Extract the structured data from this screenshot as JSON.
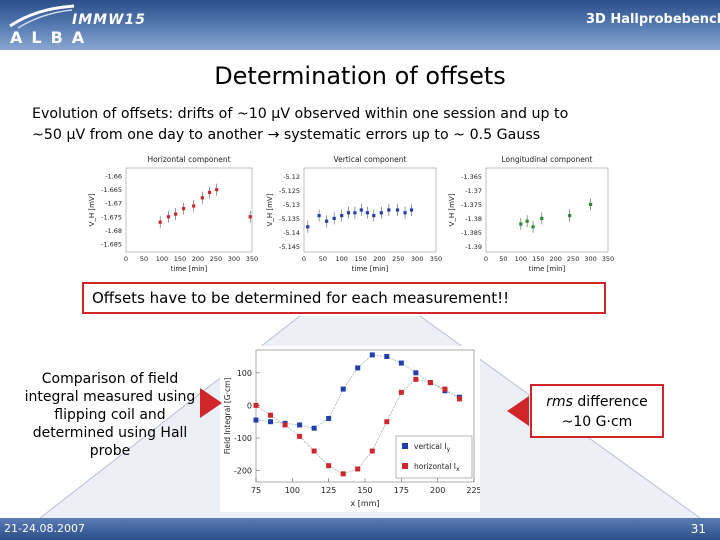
{
  "header": {
    "conference": "IMMW15",
    "logo_text": "ALBA",
    "topic": "3D Hallprobebench"
  },
  "title": "Determination of offsets",
  "intro": {
    "line1": "Evolution of offsets: drifts of ~10 μV observed within one session and up to",
    "line2": "~50 μV from one day to another → systematic errors up to ~ 0.5 Gauss"
  },
  "callouts": {
    "offsets_box": "Offsets have to be determined for each measurement!!",
    "left_text": "Comparison of field integral measured using flipping coil and determined using Hall probe",
    "rms_line1_em": "rms",
    "rms_line1_rest": " difference",
    "rms_line2": "~10 G·cm"
  },
  "footer": {
    "date": "21-24.08.2007",
    "page": "31"
  },
  "colors": {
    "header_blue": "#3a5f9c",
    "box_border": "#d0262a",
    "red_points": "#d0262a",
    "blue_points": "#1f3fb0",
    "green_points": "#2e8b2e"
  },
  "chart_data": [
    {
      "type": "scatter",
      "title": "Horizontal component",
      "xlabel": "time [min]",
      "ylabel": "V_H [mV]",
      "xticks": [
        "0",
        "50",
        "100",
        "150",
        "200",
        "250",
        "300",
        "350"
      ],
      "yticks": [
        "-1.66",
        "-1.665",
        "-1.67",
        "-1.675",
        "-1.68",
        "-1.685"
      ],
      "xlim": [
        0,
        350
      ],
      "ylim": [
        -1.688,
        -1.657
      ],
      "series": [
        {
          "name": "",
          "color": "#d0262a",
          "x": [
            95,
            118,
            138,
            160,
            188,
            212,
            232,
            252,
            345
          ],
          "y": [
            -1.677,
            -1.675,
            -1.674,
            -1.672,
            -1.671,
            -1.668,
            -1.666,
            -1.665,
            -1.675
          ]
        }
      ]
    },
    {
      "type": "scatter",
      "title": "Vertical component",
      "xlabel": "time [min]",
      "ylabel": "V_H [mV]",
      "xticks": [
        "0",
        "50",
        "100",
        "150",
        "200",
        "250",
        "300",
        "350"
      ],
      "yticks": [
        "-5.12",
        "-5.125",
        "-5.13",
        "-5.135",
        "-5.14",
        "-5.145"
      ],
      "xlim": [
        0,
        350
      ],
      "ylim": [
        -5.147,
        -5.117
      ],
      "series": [
        {
          "name": "",
          "color": "#1f3fb0",
          "x": [
            10,
            40,
            60,
            80,
            100,
            118,
            135,
            152,
            168,
            185,
            205,
            225,
            248,
            268,
            285
          ],
          "y": [
            -5.138,
            -5.134,
            -5.136,
            -5.135,
            -5.134,
            -5.133,
            -5.133,
            -5.132,
            -5.133,
            -5.134,
            -5.133,
            -5.132,
            -5.132,
            -5.133,
            -5.132
          ]
        }
      ]
    },
    {
      "type": "scatter",
      "title": "Longitudinal component",
      "xlabel": "time [min]",
      "ylabel": "V_H [mV]",
      "xticks": [
        "0",
        "50",
        "100",
        "150",
        "200",
        "250",
        "300",
        "350"
      ],
      "yticks": [
        "-1.365",
        "-1.37",
        "-1.375",
        "-1.38",
        "-1.385",
        "-1.39"
      ],
      "xlim": [
        0,
        350
      ],
      "ylim": [
        -1.392,
        -1.362
      ],
      "series": [
        {
          "name": "",
          "color": "#2e8b2e",
          "x": [
            100,
            118,
            135,
            160,
            240,
            300
          ],
          "y": [
            -1.382,
            -1.381,
            -1.383,
            -1.38,
            -1.379,
            -1.375
          ]
        }
      ]
    },
    {
      "type": "line",
      "title": "",
      "xlabel": "x [mm]",
      "ylabel": "Field Integral [G·cm]",
      "xticks": [
        "75",
        "100",
        "125",
        "150",
        "175",
        "200",
        "225"
      ],
      "yticks": [
        "100",
        "0",
        "-100",
        "-200"
      ],
      "xlim": [
        75,
        225
      ],
      "ylim": [
        -235,
        170
      ],
      "series": [
        {
          "name": "vertical I",
          "name_sub": "y",
          "color": "#1f3fb0",
          "x": [
            75,
            85,
            95,
            105,
            115,
            125,
            135,
            145,
            155,
            165,
            175,
            185,
            195,
            205,
            215
          ],
          "y": [
            -45,
            -50,
            -55,
            -60,
            -70,
            -40,
            50,
            115,
            155,
            150,
            130,
            100,
            70,
            45,
            25
          ]
        },
        {
          "name": "horizontal I",
          "name_sub": "x",
          "color": "#d0262a",
          "x": [
            75,
            85,
            95,
            105,
            115,
            125,
            135,
            145,
            155,
            165,
            175,
            185,
            195,
            205,
            215
          ],
          "y": [
            0,
            -30,
            -60,
            -95,
            -140,
            -185,
            -210,
            -195,
            -140,
            -50,
            40,
            80,
            70,
            50,
            20
          ]
        }
      ]
    }
  ]
}
